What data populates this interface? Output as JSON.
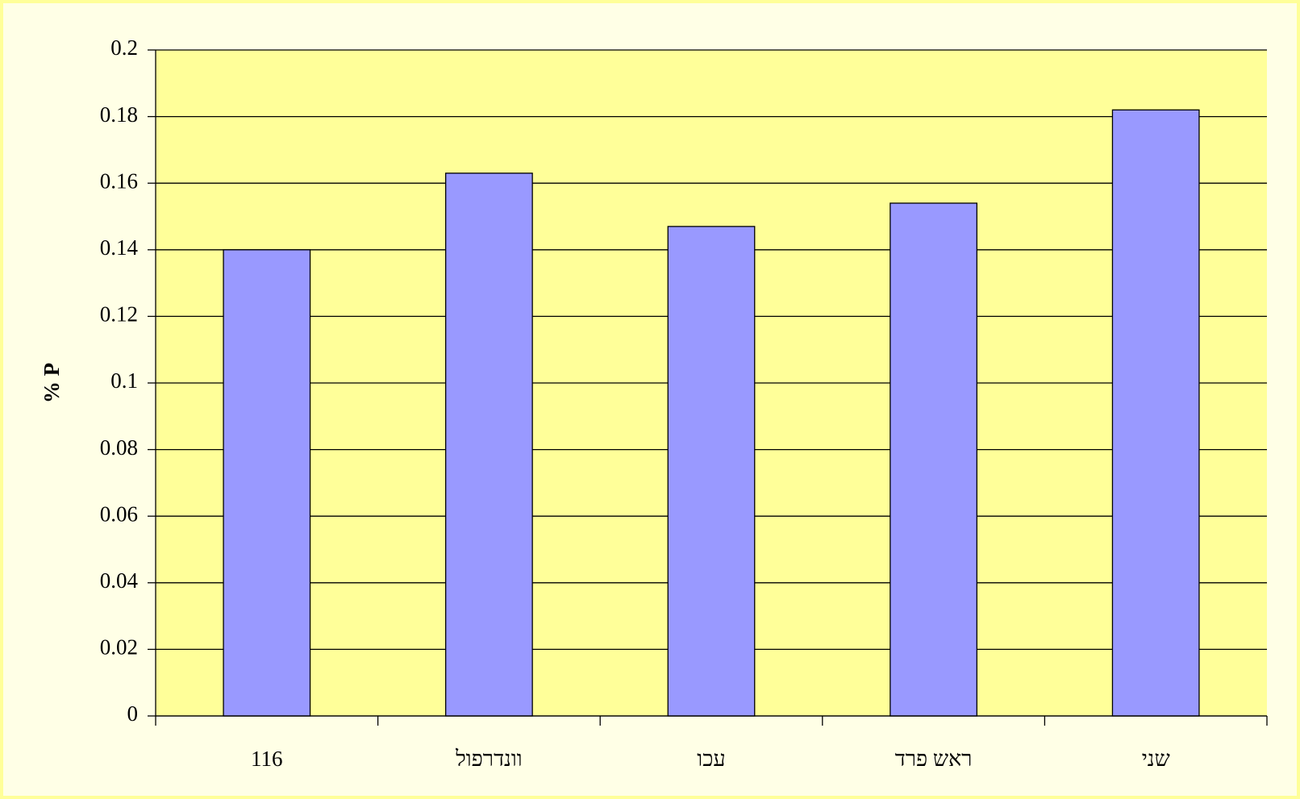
{
  "chart_data": {
    "type": "bar",
    "y_label": "% P",
    "categories": [
      "116",
      "וונדרפול",
      "עכו",
      "ראש פרד",
      "שני"
    ],
    "values": [
      0.14,
      0.163,
      0.147,
      0.154,
      0.182
    ],
    "color": "#9999ff",
    "ylim": [
      0,
      0.2
    ],
    "yticks": [
      0,
      0.02,
      0.04,
      0.06,
      0.08,
      0.1,
      0.12,
      0.14,
      0.16,
      0.18,
      0.2
    ],
    "grid": true
  }
}
